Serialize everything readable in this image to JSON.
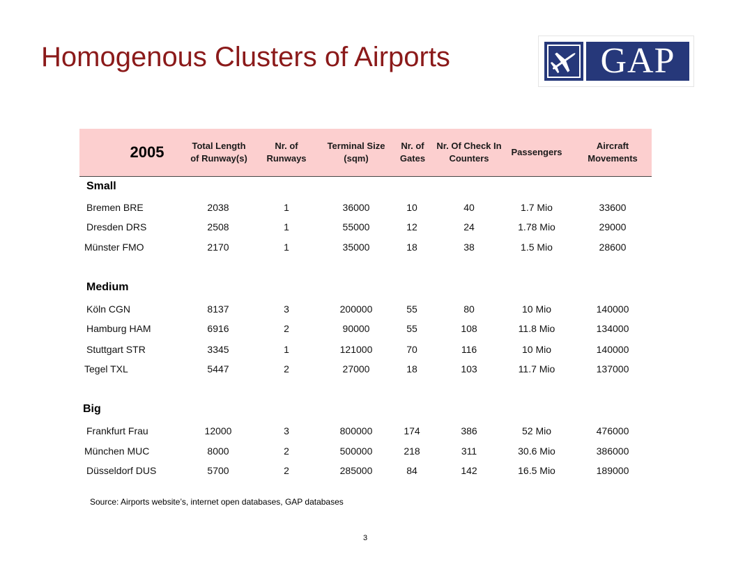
{
  "slide": {
    "title": "Homogenous Clusters of Airports",
    "source": "Source: Airports website’s, internet open databases, GAP databases",
    "page_number": "3"
  },
  "logo": {
    "text": "GAP",
    "icon": "airplane-icon",
    "color": "#26387a"
  },
  "table": {
    "year": "2005",
    "headers": [
      "Total Length of Runway(s)",
      "Nr. of Runways",
      "Terminal Size (sqm)",
      "Nr. of Gates",
      "Nr. Of Check In Counters",
      "Passengers",
      "Aircraft Movements"
    ],
    "groups": [
      {
        "name": "Small",
        "rows": [
          {
            "airport": "Bremen BRE",
            "values": [
              "2038",
              "1",
              "36000",
              "10",
              "40",
              "1.7 Mio",
              "33600"
            ]
          },
          {
            "airport": "Dresden DRS",
            "values": [
              "2508",
              "1",
              "55000",
              "12",
              "24",
              "1.78 Mio",
              "29000"
            ]
          },
          {
            "airport": "Münster FMO",
            "values": [
              "2170",
              "1",
              "35000",
              "18",
              "38",
              "1.5 Mio",
              "28600"
            ]
          }
        ]
      },
      {
        "name": "Medium",
        "rows": [
          {
            "airport": "Köln CGN",
            "values": [
              "8137",
              "3",
              "200000",
              "55",
              "80",
              "10 Mio",
              "140000"
            ]
          },
          {
            "airport": "Hamburg HAM",
            "values": [
              "6916",
              "2",
              "90000",
              "55",
              "108",
              "11.8 Mio",
              "134000"
            ]
          },
          {
            "airport": "Stuttgart STR",
            "values": [
              "3345",
              "1",
              "121000",
              "70",
              "116",
              "10 Mio",
              "140000"
            ]
          },
          {
            "airport": "Tegel TXL",
            "values": [
              "5447",
              "2",
              "27000",
              "18",
              "103",
              "11.7 Mio",
              "137000"
            ]
          }
        ]
      },
      {
        "name": "Big",
        "rows": [
          {
            "airport": "Frankfurt Frau",
            "values": [
              "12000",
              "3",
              "800000",
              "174",
              "386",
              "52 Mio",
              "476000"
            ]
          },
          {
            "airport": "München MUC",
            "values": [
              "8000",
              "2",
              "500000",
              "218",
              "311",
              "30.6 Mio",
              "386000"
            ]
          },
          {
            "airport": "Düsseldorf DUS",
            "values": [
              "5700",
              "2",
              "285000",
              "84",
              "142",
              "16.5 Mio",
              "189000"
            ]
          }
        ]
      }
    ]
  }
}
